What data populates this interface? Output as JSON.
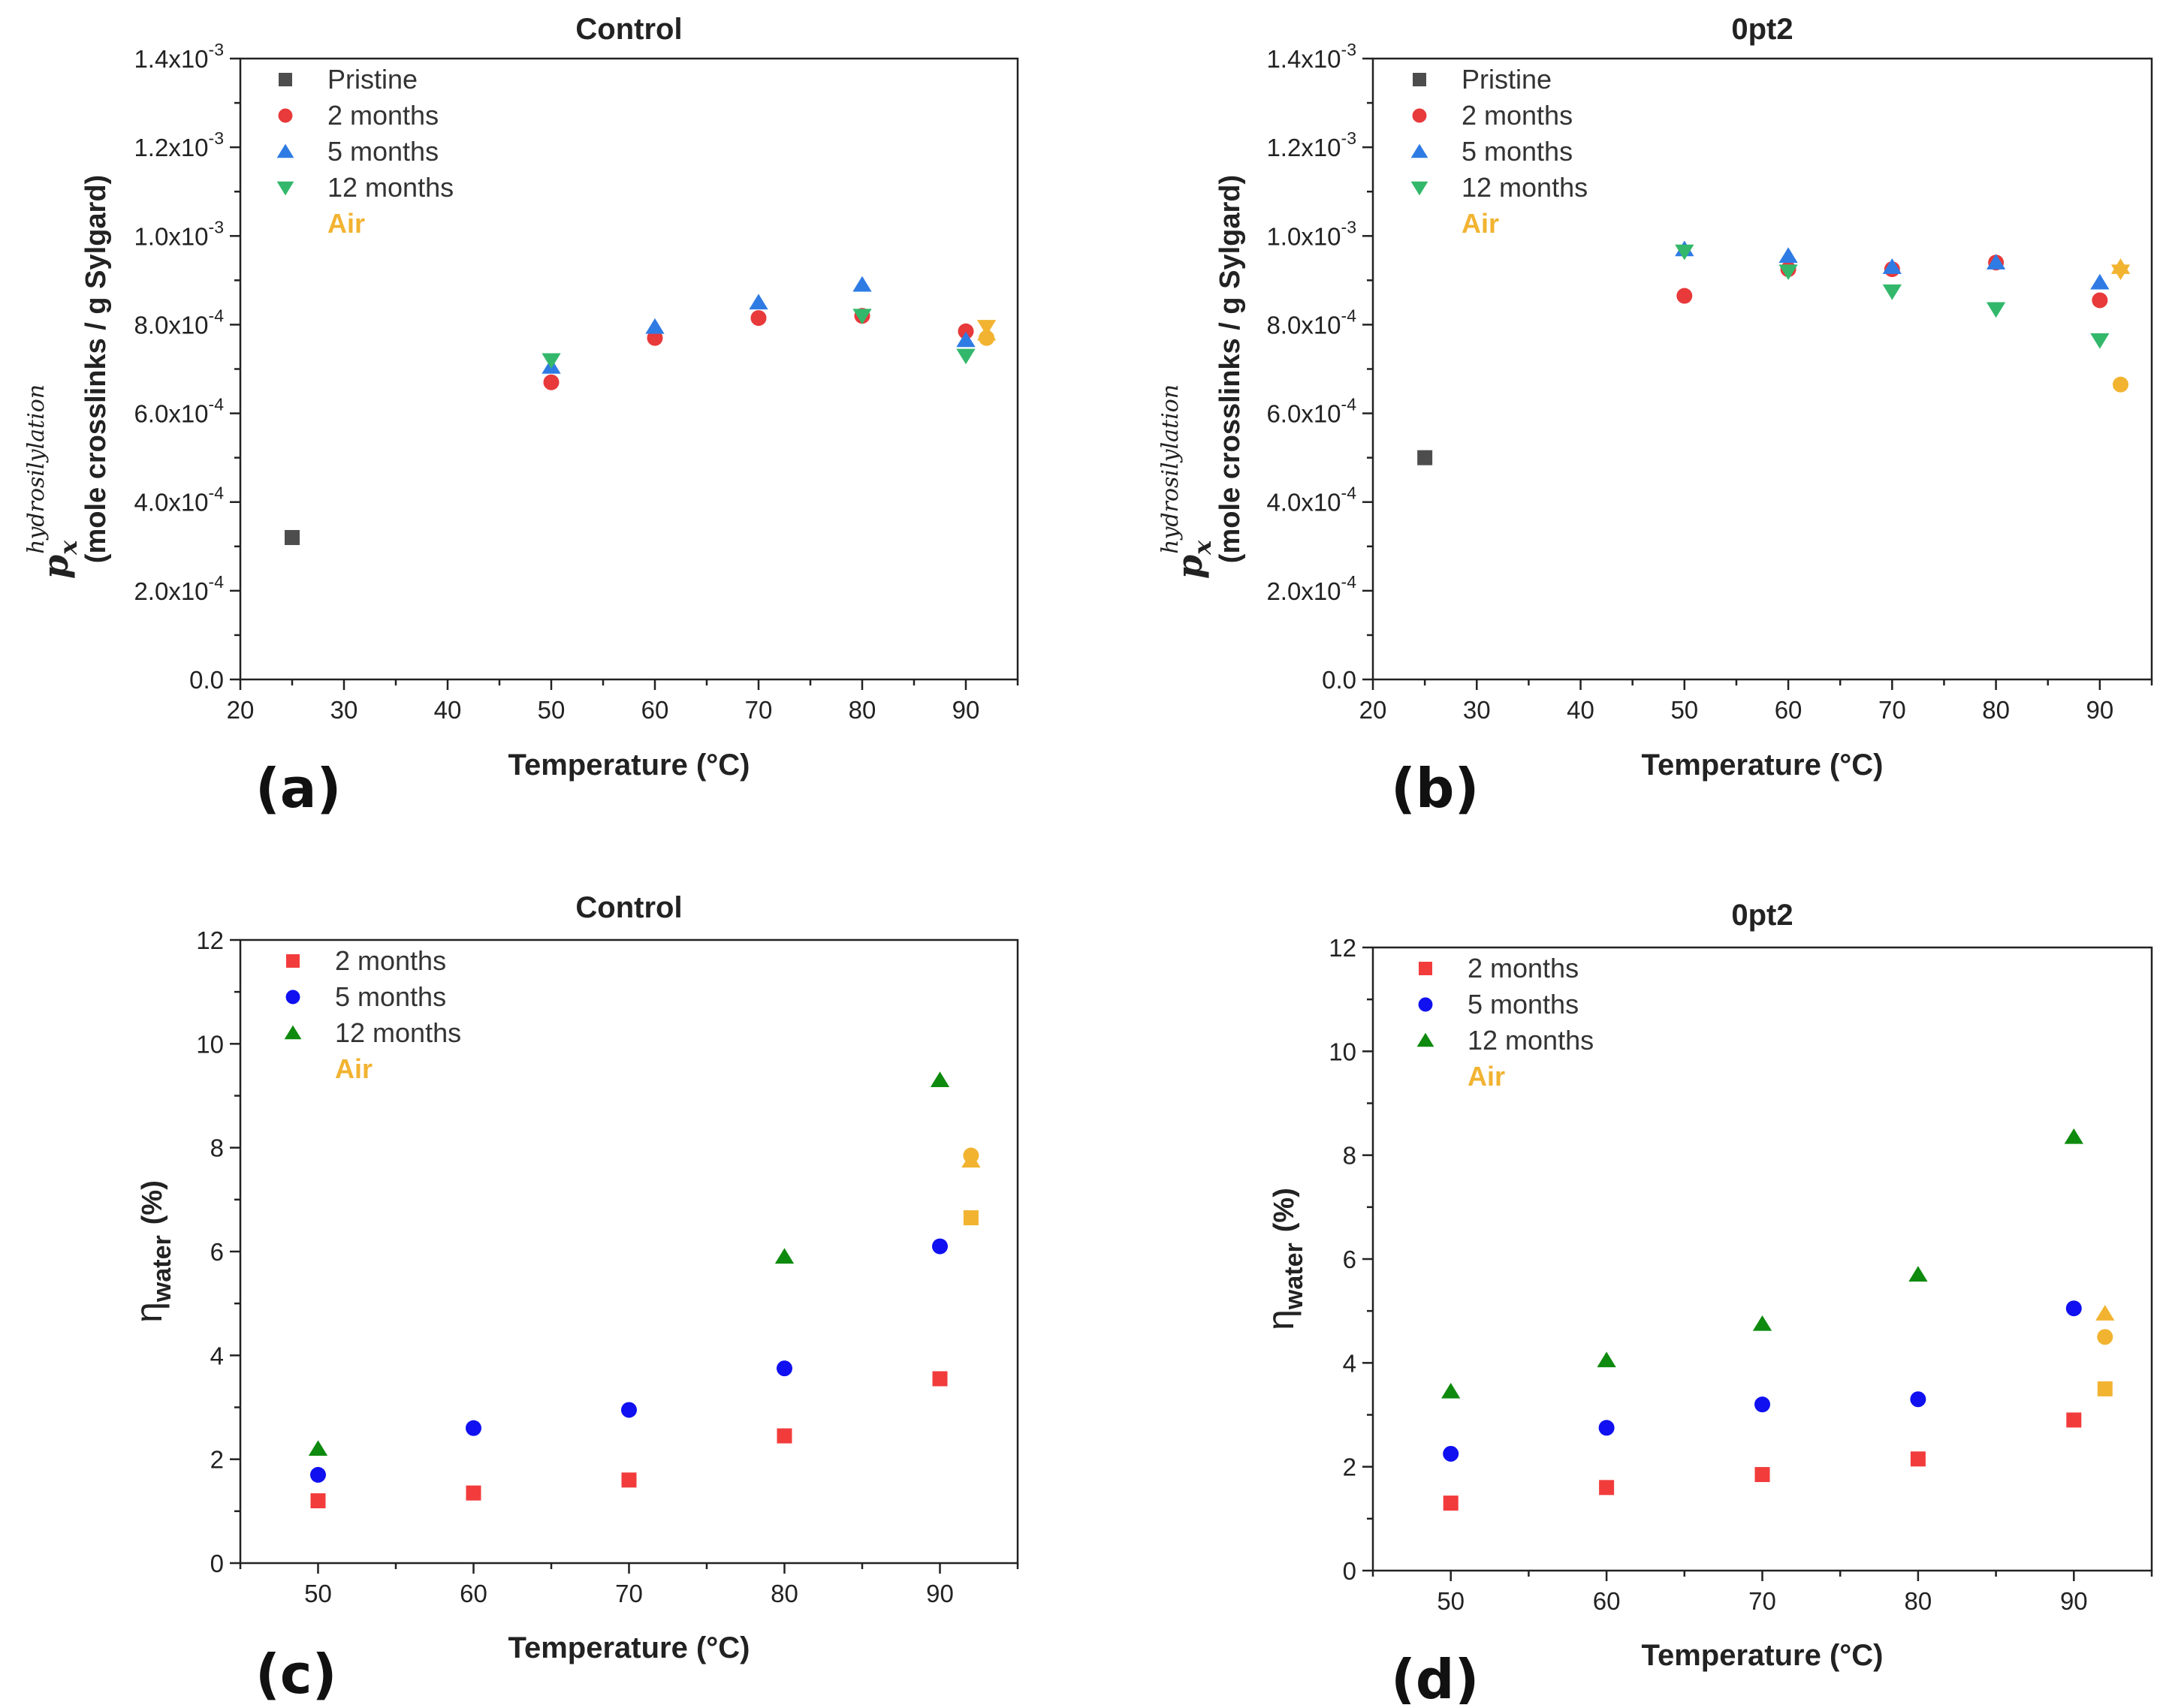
{
  "colors": {
    "pristine": "#4d4d4d",
    "m2_top": "#e8393b",
    "m5_top": "#2f7be4",
    "m12_top": "#33b86b",
    "air": "#f2b331",
    "m2_bottom": "#f23c3c",
    "m5_bottom": "#1010f0",
    "m12_bottom": "#0e8a0e"
  },
  "chart_data": [
    {
      "panel": "(a)",
      "type": "scatter",
      "title": "Control",
      "xlabel": "Temperature (°C)",
      "ylabel_symbol": "p",
      "ylabel_subscript": "x",
      "ylabel_superscript": "hydrosilylation",
      "ylabel_units": "(mole crosslinks / g Sylgard)",
      "xlim": [
        20,
        95
      ],
      "ylim": [
        0,
        0.0014
      ],
      "xticks": [
        20,
        30,
        40,
        50,
        60,
        70,
        80,
        90
      ],
      "yticks": [
        {
          "value": 0,
          "label": "0.0",
          "exp": ""
        },
        {
          "value": 0.0002,
          "label": "2.0x10",
          "exp": "-4"
        },
        {
          "value": 0.0004,
          "label": "4.0x10",
          "exp": "-4"
        },
        {
          "value": 0.0006,
          "label": "6.0x10",
          "exp": "-4"
        },
        {
          "value": 0.0008,
          "label": "8.0x10",
          "exp": "-4"
        },
        {
          "value": 0.001,
          "label": "1.0x10",
          "exp": "-3"
        },
        {
          "value": 0.0012,
          "label": "1.2x10",
          "exp": "-3"
        },
        {
          "value": 0.0014,
          "label": "1.4x10",
          "exp": "-3"
        }
      ],
      "legend": [
        {
          "label": "Pristine",
          "marker": "square",
          "color": "#4d4d4d"
        },
        {
          "label": "2 months",
          "marker": "circle",
          "color": "#e8393b"
        },
        {
          "label": "5 months",
          "marker": "triangle-up",
          "color": "#2f7be4"
        },
        {
          "label": "12 months",
          "marker": "triangle-down",
          "color": "#33b86b"
        },
        {
          "label": "Air",
          "marker": "none",
          "color": "#f2b331"
        }
      ],
      "series": [
        {
          "name": "Pristine",
          "marker": "square",
          "color": "#4d4d4d",
          "points": [
            [
              25,
              0.00032
            ]
          ]
        },
        {
          "name": "2 months",
          "marker": "circle",
          "color": "#e8393b",
          "points": [
            [
              50,
              0.00067
            ],
            [
              60,
              0.00077
            ],
            [
              70,
              0.000815
            ],
            [
              80,
              0.00082
            ],
            [
              90,
              0.000785
            ]
          ]
        },
        {
          "name": "5 months",
          "marker": "triangle-up",
          "color": "#2f7be4",
          "points": [
            [
              50,
              0.000705
            ],
            [
              60,
              0.000795
            ],
            [
              70,
              0.00085
            ],
            [
              80,
              0.00089
            ],
            [
              90,
              0.000765
            ]
          ]
        },
        {
          "name": "12 months",
          "marker": "triangle-down",
          "color": "#33b86b",
          "points": [
            [
              50,
              0.00072
            ],
            [
              80,
              0.00082
            ],
            [
              90,
              0.00073
            ]
          ]
        },
        {
          "name": "Air (2 months)",
          "marker": "circle",
          "color": "#f2b331",
          "points": [
            [
              92,
              0.00077
            ]
          ]
        },
        {
          "name": "Air (5 months)",
          "marker": "triangle-up",
          "color": "#f2b331",
          "points": [
            [
              92,
              0.00078
            ]
          ]
        },
        {
          "name": "Air (12 months)",
          "marker": "triangle-down",
          "color": "#f2b331",
          "points": [
            [
              92,
              0.000795
            ]
          ]
        }
      ]
    },
    {
      "panel": "(b)",
      "type": "scatter",
      "title": "0pt2",
      "xlabel": "Temperature (°C)",
      "ylabel_symbol": "p",
      "ylabel_subscript": "x",
      "ylabel_superscript": "hydrosilylation",
      "ylabel_units": "(mole crosslinks / g Sylgard)",
      "xlim": [
        20,
        95
      ],
      "ylim": [
        0,
        0.0014
      ],
      "xticks": [
        20,
        30,
        40,
        50,
        60,
        70,
        80,
        90
      ],
      "yticks": [
        {
          "value": 0,
          "label": "0.0",
          "exp": ""
        },
        {
          "value": 0.0002,
          "label": "2.0x10",
          "exp": "-4"
        },
        {
          "value": 0.0004,
          "label": "4.0x10",
          "exp": "-4"
        },
        {
          "value": 0.0006,
          "label": "6.0x10",
          "exp": "-4"
        },
        {
          "value": 0.0008,
          "label": "8.0x10",
          "exp": "-4"
        },
        {
          "value": 0.001,
          "label": "1.0x10",
          "exp": "-3"
        },
        {
          "value": 0.0012,
          "label": "1.2x10",
          "exp": "-3"
        },
        {
          "value": 0.0014,
          "label": "1.4x10",
          "exp": "-3"
        }
      ],
      "legend": [
        {
          "label": "Pristine",
          "marker": "square",
          "color": "#4d4d4d"
        },
        {
          "label": "2 months",
          "marker": "circle",
          "color": "#e8393b"
        },
        {
          "label": "5 months",
          "marker": "triangle-up",
          "color": "#2f7be4"
        },
        {
          "label": "12 months",
          "marker": "triangle-down",
          "color": "#33b86b"
        },
        {
          "label": "Air",
          "marker": "none",
          "color": "#f2b331"
        }
      ],
      "series": [
        {
          "name": "Pristine",
          "marker": "square",
          "color": "#4d4d4d",
          "points": [
            [
              25,
              0.0005
            ]
          ]
        },
        {
          "name": "2 months",
          "marker": "circle",
          "color": "#e8393b",
          "points": [
            [
              50,
              0.000865
            ],
            [
              60,
              0.000925
            ],
            [
              70,
              0.000925
            ],
            [
              80,
              0.00094
            ],
            [
              90,
              0.000855
            ]
          ]
        },
        {
          "name": "5 months",
          "marker": "triangle-up",
          "color": "#2f7be4",
          "points": [
            [
              50,
              0.00097
            ],
            [
              60,
              0.000955
            ],
            [
              70,
              0.00093
            ],
            [
              80,
              0.00094
            ],
            [
              90,
              0.000895
            ]
          ]
        },
        {
          "name": "12 months",
          "marker": "triangle-down",
          "color": "#33b86b",
          "points": [
            [
              50,
              0.000965
            ],
            [
              60,
              0.00092
            ],
            [
              70,
              0.000875
            ],
            [
              80,
              0.000835
            ],
            [
              90,
              0.000765
            ]
          ]
        },
        {
          "name": "Air (2 months)",
          "marker": "circle",
          "color": "#f2b331",
          "points": [
            [
              92,
              0.000665
            ]
          ]
        },
        {
          "name": "Air (5 months)",
          "marker": "triangle-up",
          "color": "#f2b331",
          "points": [
            [
              92,
              0.00093
            ]
          ]
        },
        {
          "name": "Air (12 months)",
          "marker": "triangle-down",
          "color": "#f2b331",
          "points": [
            [
              92,
              0.00092
            ]
          ]
        }
      ]
    },
    {
      "panel": "(c)",
      "type": "scatter",
      "title": "Control",
      "xlabel": "Temperature (°C)",
      "ylabel_symbol": "η",
      "ylabel_subscript": "water",
      "ylabel_units": "(%)",
      "xlim": [
        45,
        95
      ],
      "ylim": [
        0,
        12
      ],
      "xticks": [
        50,
        60,
        70,
        80,
        90
      ],
      "yticks": [
        {
          "value": 0,
          "label": "0"
        },
        {
          "value": 2,
          "label": "2"
        },
        {
          "value": 4,
          "label": "4"
        },
        {
          "value": 6,
          "label": "6"
        },
        {
          "value": 8,
          "label": "8"
        },
        {
          "value": 10,
          "label": "10"
        },
        {
          "value": 12,
          "label": "12"
        }
      ],
      "legend": [
        {
          "label": "2 months",
          "marker": "square",
          "color": "#f23c3c"
        },
        {
          "label": "5 months",
          "marker": "circle",
          "color": "#1010f0"
        },
        {
          "label": "12 months",
          "marker": "triangle-up",
          "color": "#0e8a0e"
        },
        {
          "label": "Air",
          "marker": "none",
          "color": "#f2b331"
        }
      ],
      "series": [
        {
          "name": "2 months",
          "marker": "square",
          "color": "#f23c3c",
          "points": [
            [
              50,
              1.2
            ],
            [
              60,
              1.35
            ],
            [
              70,
              1.6
            ],
            [
              80,
              2.45
            ],
            [
              90,
              3.55
            ]
          ]
        },
        {
          "name": "5 months",
          "marker": "circle",
          "color": "#1010f0",
          "points": [
            [
              50,
              1.7
            ],
            [
              60,
              2.6
            ],
            [
              70,
              2.95
            ],
            [
              80,
              3.75
            ],
            [
              90,
              6.1
            ]
          ]
        },
        {
          "name": "12 months",
          "marker": "triangle-up",
          "color": "#0e8a0e",
          "points": [
            [
              50,
              2.2
            ],
            [
              80,
              5.9
            ],
            [
              90,
              9.3
            ]
          ]
        },
        {
          "name": "Air (2 months)",
          "marker": "square",
          "color": "#f2b331",
          "points": [
            [
              92,
              6.65
            ]
          ]
        },
        {
          "name": "Air (5 months)",
          "marker": "circle",
          "color": "#f2b331",
          "points": [
            [
              92,
              7.85
            ]
          ]
        },
        {
          "name": "Air (12 months)",
          "marker": "triangle-up",
          "color": "#f2b331",
          "points": [
            [
              92,
              7.75
            ]
          ]
        }
      ]
    },
    {
      "panel": "(d)",
      "type": "scatter",
      "title": "0pt2",
      "xlabel": "Temperature (°C)",
      "ylabel_symbol": "η",
      "ylabel_subscript": "water",
      "ylabel_units": "(%)",
      "xlim": [
        45,
        95
      ],
      "ylim": [
        0,
        12
      ],
      "xticks": [
        50,
        60,
        70,
        80,
        90
      ],
      "yticks": [
        {
          "value": 0,
          "label": "0"
        },
        {
          "value": 2,
          "label": "2"
        },
        {
          "value": 4,
          "label": "4"
        },
        {
          "value": 6,
          "label": "6"
        },
        {
          "value": 8,
          "label": "8"
        },
        {
          "value": 10,
          "label": "10"
        },
        {
          "value": 12,
          "label": "12"
        }
      ],
      "legend": [
        {
          "label": "2 months",
          "marker": "square",
          "color": "#f23c3c"
        },
        {
          "label": "5 months",
          "marker": "circle",
          "color": "#1010f0"
        },
        {
          "label": "12 months",
          "marker": "triangle-up",
          "color": "#0e8a0e"
        },
        {
          "label": "Air",
          "marker": "none",
          "color": "#f2b331"
        }
      ],
      "series": [
        {
          "name": "2 months",
          "marker": "square",
          "color": "#f23c3c",
          "points": [
            [
              50,
              1.3
            ],
            [
              60,
              1.6
            ],
            [
              70,
              1.85
            ],
            [
              80,
              2.15
            ],
            [
              90,
              2.9
            ]
          ]
        },
        {
          "name": "5 months",
          "marker": "circle",
          "color": "#1010f0",
          "points": [
            [
              50,
              2.25
            ],
            [
              60,
              2.75
            ],
            [
              70,
              3.2
            ],
            [
              80,
              3.3
            ],
            [
              90,
              5.05
            ]
          ]
        },
        {
          "name": "12 months",
          "marker": "triangle-up",
          "color": "#0e8a0e",
          "points": [
            [
              50,
              3.45
            ],
            [
              60,
              4.05
            ],
            [
              70,
              4.75
            ],
            [
              80,
              5.7
            ],
            [
              90,
              8.35
            ]
          ]
        },
        {
          "name": "Air (2 months)",
          "marker": "square",
          "color": "#f2b331",
          "points": [
            [
              92,
              3.5
            ]
          ]
        },
        {
          "name": "Air (5 months)",
          "marker": "circle",
          "color": "#f2b331",
          "points": [
            [
              92,
              4.5
            ]
          ]
        },
        {
          "name": "Air (12 months)",
          "marker": "triangle-up",
          "color": "#f2b331",
          "points": [
            [
              92,
              4.95
            ]
          ]
        }
      ]
    }
  ]
}
